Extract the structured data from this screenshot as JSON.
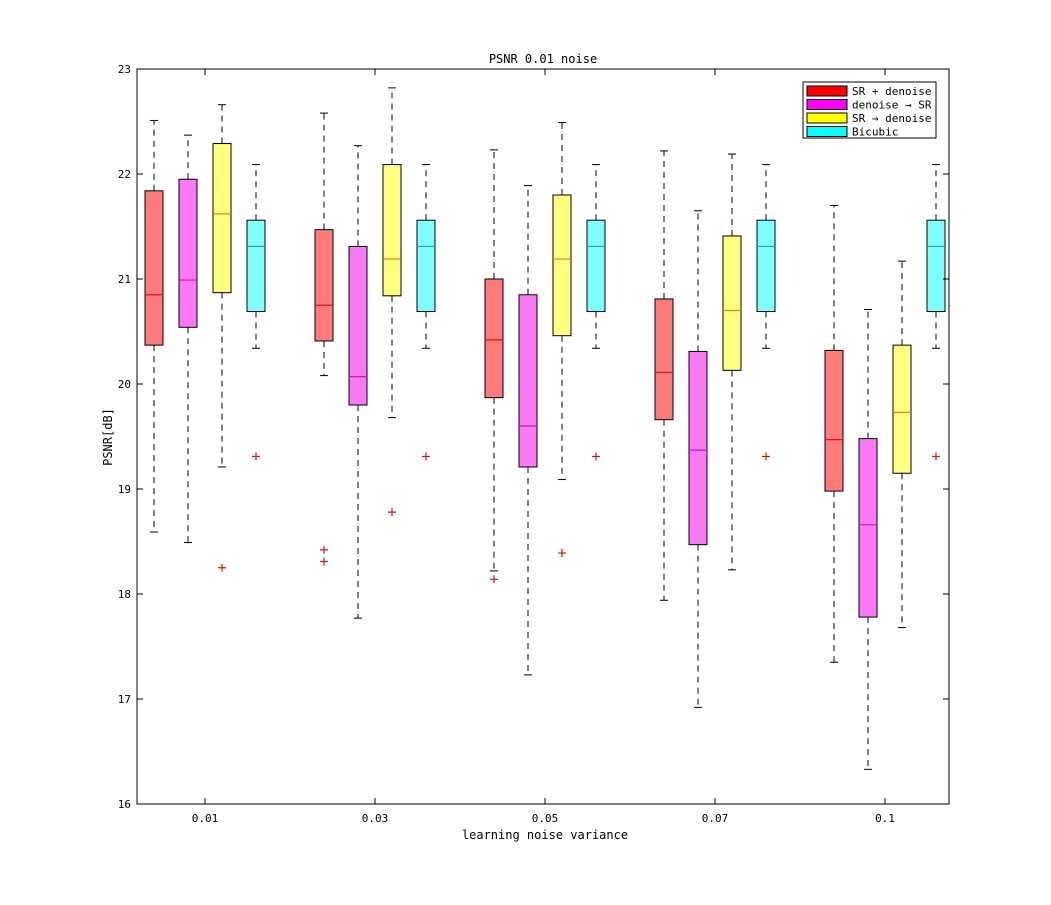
{
  "chart_data": {
    "type": "box",
    "title": "PSNR 0.01 noise",
    "xlabel": "learning noise variance",
    "ylabel": "PSNR[dB]",
    "ylim": [
      16,
      23
    ],
    "yticks": [
      16,
      17,
      18,
      19,
      20,
      21,
      22,
      23
    ],
    "categories": [
      "0.01",
      "0.03",
      "0.05",
      "0.07",
      "0.1"
    ],
    "legend_position": "top-right",
    "series": [
      {
        "name": "SR + denoise",
        "color": "#ff0000",
        "fill": "#ff7a7a",
        "median_color": "#e0101e",
        "boxes": [
          {
            "whisker_low": 18.59,
            "q1": 20.37,
            "median": 20.85,
            "q3": 21.84,
            "whisker_high": 22.51,
            "outliers": []
          },
          {
            "whisker_low": 20.08,
            "q1": 20.41,
            "median": 20.75,
            "q3": 21.47,
            "whisker_high": 22.58,
            "outliers": [
              18.42,
              18.31
            ]
          },
          {
            "whisker_low": 18.22,
            "q1": 19.87,
            "median": 20.42,
            "q3": 21.0,
            "whisker_high": 22.23,
            "outliers": [
              18.14
            ]
          },
          {
            "whisker_low": 17.94,
            "q1": 19.66,
            "median": 20.11,
            "q3": 20.81,
            "whisker_high": 22.22,
            "outliers": []
          },
          {
            "whisker_low": 17.35,
            "q1": 18.98,
            "median": 19.47,
            "q3": 20.32,
            "whisker_high": 21.7,
            "outliers": []
          }
        ]
      },
      {
        "name": "denoise →  SR",
        "color": "#ff00ff",
        "fill": "#fa7af5",
        "median_color": "#dd0eaa",
        "boxes": [
          {
            "whisker_low": 18.49,
            "q1": 20.54,
            "median": 20.99,
            "q3": 21.95,
            "whisker_high": 22.37,
            "outliers": []
          },
          {
            "whisker_low": 17.77,
            "q1": 19.8,
            "median": 20.07,
            "q3": 21.31,
            "whisker_high": 22.27,
            "outliers": []
          },
          {
            "whisker_low": 17.23,
            "q1": 19.21,
            "median": 19.6,
            "q3": 20.85,
            "whisker_high": 21.89,
            "outliers": []
          },
          {
            "whisker_low": 16.92,
            "q1": 18.47,
            "median": 19.37,
            "q3": 20.31,
            "whisker_high": 21.65,
            "outliers": []
          },
          {
            "whisker_low": 16.33,
            "q1": 17.78,
            "median": 18.66,
            "q3": 19.48,
            "whisker_high": 20.71,
            "outliers": []
          }
        ]
      },
      {
        "name": "SR → denoise",
        "color": "#ffff00",
        "fill": "#ffff7f",
        "median_color": "#e08a00",
        "boxes": [
          {
            "whisker_low": 19.21,
            "q1": 20.87,
            "median": 21.62,
            "q3": 22.29,
            "whisker_high": 22.66,
            "outliers": [
              18.25
            ]
          },
          {
            "whisker_low": 19.68,
            "q1": 20.84,
            "median": 21.19,
            "q3": 22.09,
            "whisker_high": 22.82,
            "outliers": [
              18.78
            ]
          },
          {
            "whisker_low": 19.09,
            "q1": 20.46,
            "median": 21.19,
            "q3": 21.8,
            "whisker_high": 22.49,
            "outliers": [
              18.39
            ]
          },
          {
            "whisker_low": 18.23,
            "q1": 20.13,
            "median": 20.7,
            "q3": 21.41,
            "whisker_high": 22.19,
            "outliers": []
          },
          {
            "whisker_low": 17.68,
            "q1": 19.15,
            "median": 19.73,
            "q3": 20.37,
            "whisker_high": 21.17,
            "outliers": []
          }
        ]
      },
      {
        "name": "Bicubic",
        "color": "#00ffff",
        "fill": "#7ffefe",
        "median_color": "#15a5a5",
        "boxes": [
          {
            "whisker_low": 20.34,
            "q1": 20.69,
            "median": 21.31,
            "q3": 21.56,
            "whisker_high": 22.09,
            "outliers": [
              19.31
            ]
          },
          {
            "whisker_low": 20.34,
            "q1": 20.69,
            "median": 21.31,
            "q3": 21.56,
            "whisker_high": 22.09,
            "outliers": [
              19.31
            ]
          },
          {
            "whisker_low": 20.34,
            "q1": 20.69,
            "median": 21.31,
            "q3": 21.56,
            "whisker_high": 22.09,
            "outliers": [
              19.31
            ]
          },
          {
            "whisker_low": 20.34,
            "q1": 20.69,
            "median": 21.31,
            "q3": 21.56,
            "whisker_high": 22.09,
            "outliers": [
              19.31
            ]
          },
          {
            "whisker_low": 20.34,
            "q1": 20.69,
            "median": 21.31,
            "q3": 21.56,
            "whisker_high": 22.09,
            "outliers": [
              19.31
            ]
          }
        ]
      }
    ]
  }
}
